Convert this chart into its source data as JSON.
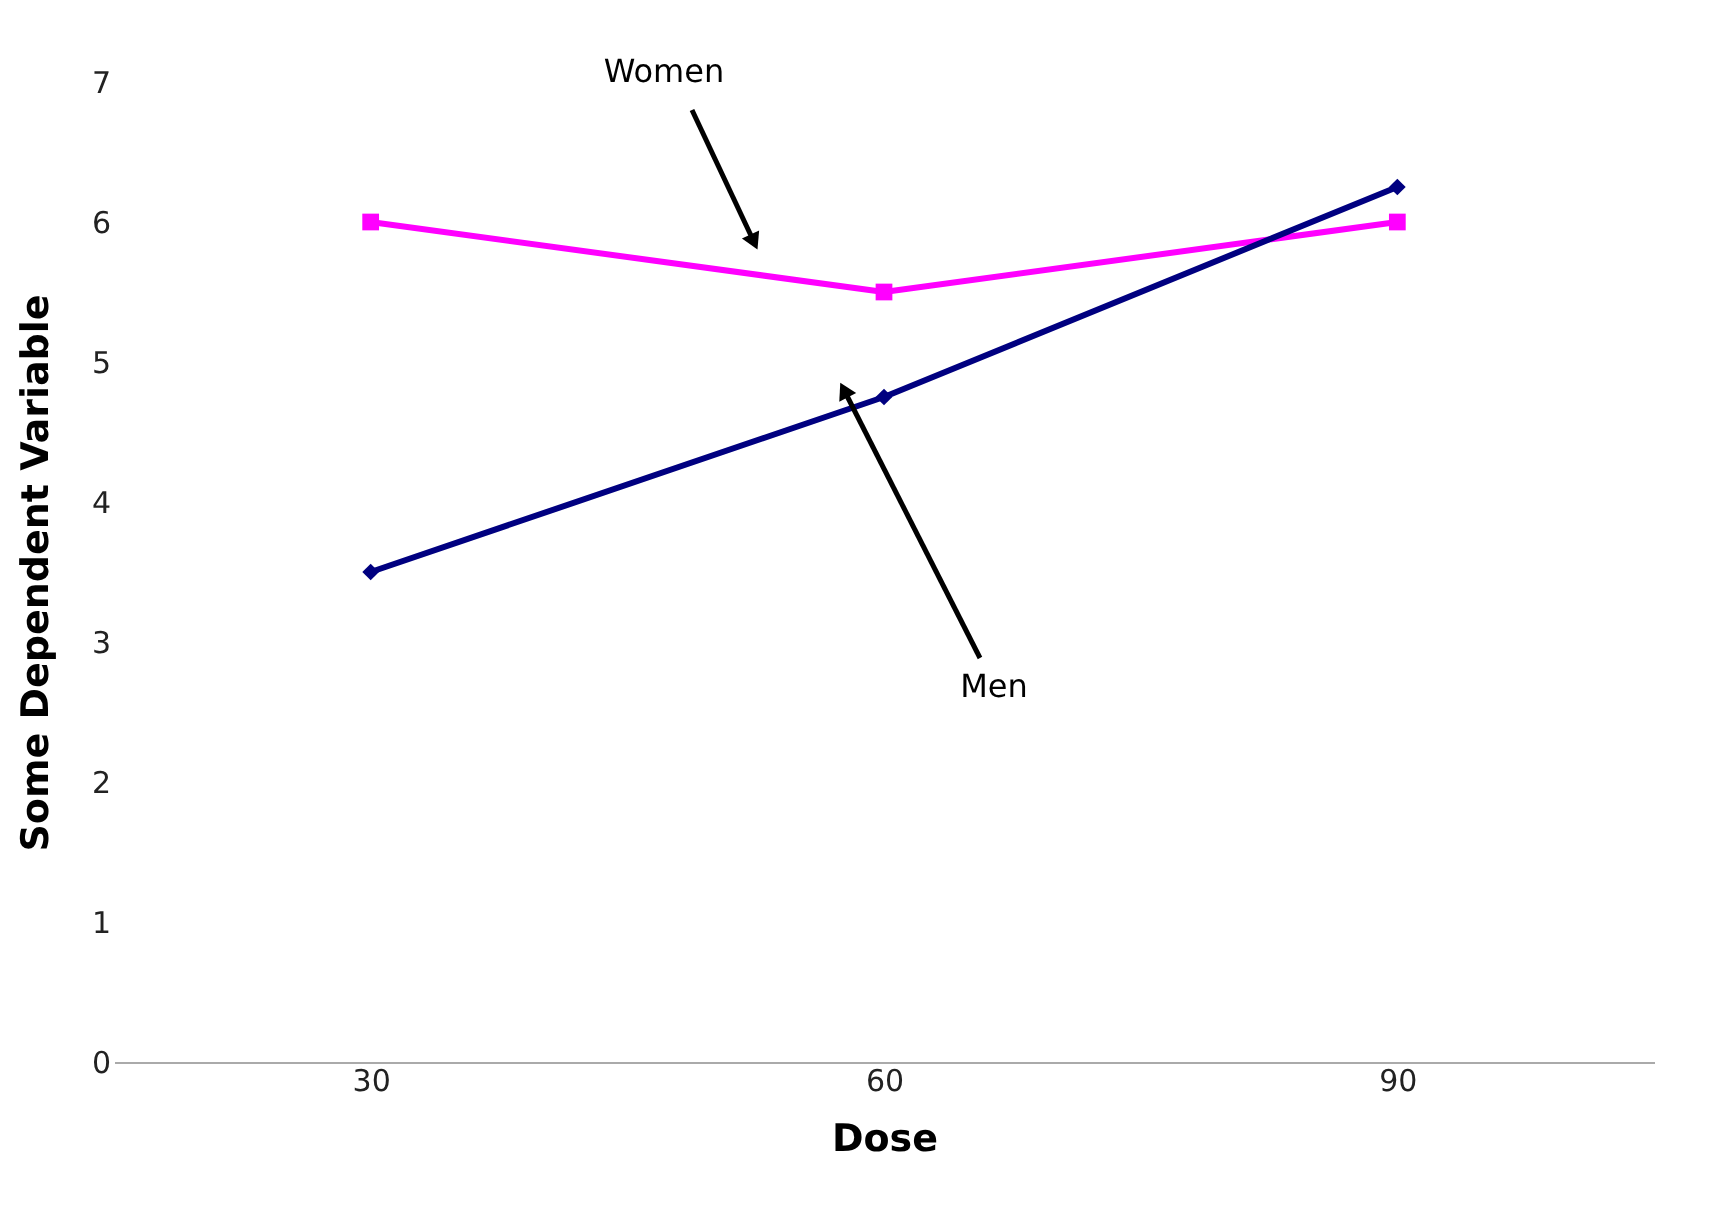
{
  "chart_data": {
    "type": "line",
    "xlabel": "Dose",
    "ylabel": "Some Dependent Variable",
    "categories": [
      "30",
      "60",
      "90"
    ],
    "series": [
      {
        "name": "Women",
        "color": "#ff00ff",
        "marker": "square",
        "values": [
          6,
          5.5,
          6
        ]
      },
      {
        "name": "Men",
        "color": "#000080",
        "marker": "diamond",
        "values": [
          3.5,
          4.75,
          6.25
        ]
      }
    ],
    "ylim": [
      0,
      7
    ],
    "yticks": [
      0,
      1,
      2,
      3,
      4,
      5,
      6,
      7
    ],
    "grid": false
  }
}
